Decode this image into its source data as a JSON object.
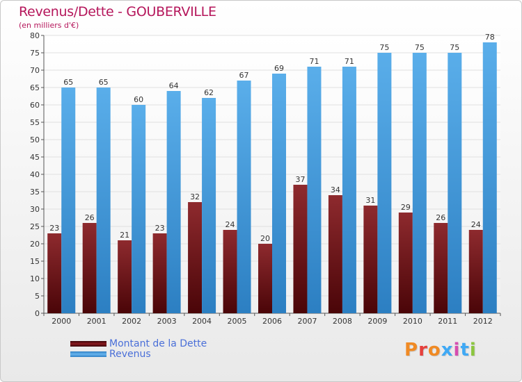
{
  "header": {
    "title": "Revenus/Dette - GOUBERVILLE",
    "subtitle": "(en milliers d'€)"
  },
  "colors": {
    "title": "#b5165b",
    "dette": "#7a1a1e",
    "revenus": "#4a9de0",
    "legend_text": "#4a6fd8"
  },
  "legend": {
    "items": [
      {
        "label": "Montant de la Dette",
        "color": "#6b0f14"
      },
      {
        "label": "Revenus",
        "color": "#4a9de0"
      }
    ]
  },
  "logo": {
    "text": "Proxiti",
    "letter_colors": [
      "#f08a24",
      "#e6403c",
      "#f08a24",
      "#3fa9f5",
      "#d64db0",
      "#3fa9f5",
      "#8cc63f"
    ]
  },
  "chart_data": {
    "type": "bar",
    "categories": [
      "2000",
      "2001",
      "2002",
      "2003",
      "2004",
      "2005",
      "2006",
      "2007",
      "2008",
      "2009",
      "2010",
      "2011",
      "2012"
    ],
    "series": [
      {
        "name": "Montant de la Dette",
        "values": [
          23,
          26,
          21,
          23,
          32,
          24,
          20,
          37,
          34,
          31,
          29,
          26,
          24
        ]
      },
      {
        "name": "Revenus",
        "values": [
          65,
          65,
          60,
          64,
          62,
          67,
          69,
          71,
          71,
          75,
          75,
          75,
          78
        ]
      }
    ],
    "ylim": [
      0,
      80
    ],
    "yticks": [
      0,
      5,
      10,
      15,
      20,
      25,
      30,
      35,
      40,
      45,
      50,
      55,
      60,
      65,
      70,
      75,
      80
    ],
    "grid": true,
    "xlabel": "",
    "ylabel": ""
  }
}
